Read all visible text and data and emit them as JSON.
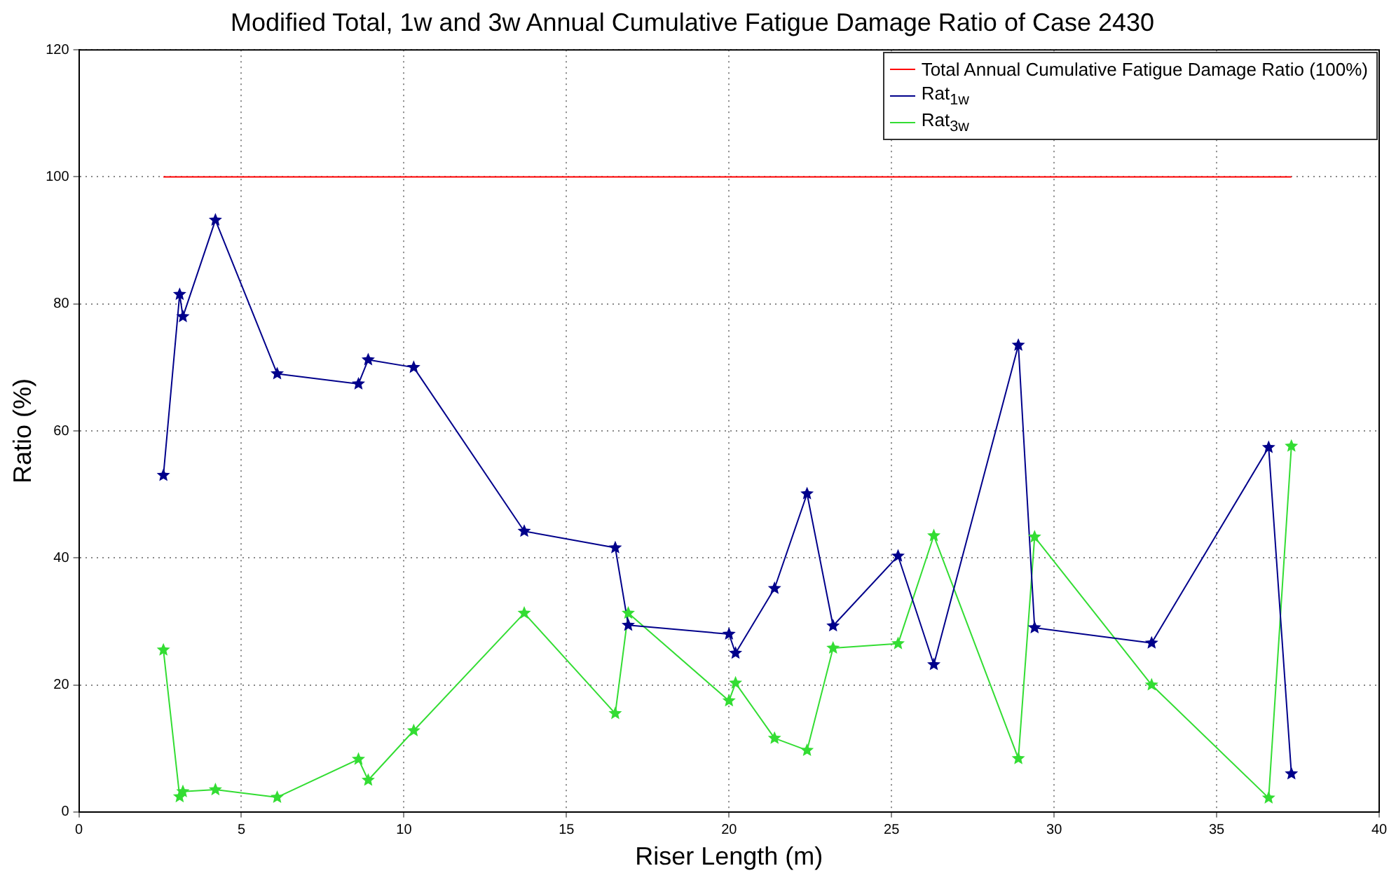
{
  "chart_data": {
    "type": "line",
    "title": "Modified Total, 1w and 3w Annual Cumulative Fatigue Damage Ratio of Case 2430",
    "xlabel": "Riser Length (m)",
    "ylabel": "Ratio (%)",
    "xlim": [
      0,
      40
    ],
    "xticks": [
      0,
      5,
      10,
      15,
      20,
      25,
      30,
      35,
      40
    ],
    "ylim": [
      0,
      120
    ],
    "yticks": [
      0,
      20,
      40,
      60,
      80,
      100,
      120
    ],
    "grid": true,
    "legend": "top right",
    "marker": "star",
    "line_style": "solid",
    "series": [
      {
        "name": "Total Annual Cumulative Fatigue Damage Ratio (100%)",
        "color": "#ff0000",
        "marker": "none",
        "x": [
          2.6,
          37.3
        ],
        "values": [
          100,
          100
        ]
      },
      {
        "name": "Rat$_{1w}$",
        "color": "#00008b",
        "x": [
          2.6,
          3.1,
          3.2,
          4.2,
          6.1,
          8.6,
          8.9,
          10.3,
          13.7,
          16.5,
          16.9,
          20,
          20.2,
          21.4,
          22.4,
          23.2,
          25.2,
          26.3,
          28.9,
          29.4,
          33.0,
          36.6,
          37.3
        ],
        "values": [
          53,
          81.5,
          78,
          93.2,
          69,
          67.4,
          71.2,
          70,
          44.2,
          41.6,
          29.4,
          28,
          25,
          35.2,
          50.1,
          29.3,
          40.3,
          23.2,
          73.5,
          29,
          26.6,
          57.4,
          6
        ]
      },
      {
        "name": "Rat$_{3w}$",
        "color": "#33dd33",
        "x": [
          2.6,
          3.1,
          3.2,
          4.2,
          6.1,
          8.6,
          8.9,
          10.3,
          13.7,
          16.5,
          16.9,
          20,
          20.2,
          21.4,
          22.4,
          23.2,
          25.2,
          26.3,
          28.9,
          29.4,
          33.0,
          36.6,
          37.3
        ],
        "values": [
          25.5,
          2.4,
          3.2,
          3.5,
          2.3,
          8.3,
          5,
          12.8,
          31.3,
          15.5,
          31.3,
          17.5,
          20.3,
          11.6,
          9.7,
          25.8,
          26.5,
          43.5,
          8.4,
          43.3,
          20,
          2.2,
          57.6
        ]
      }
    ]
  }
}
